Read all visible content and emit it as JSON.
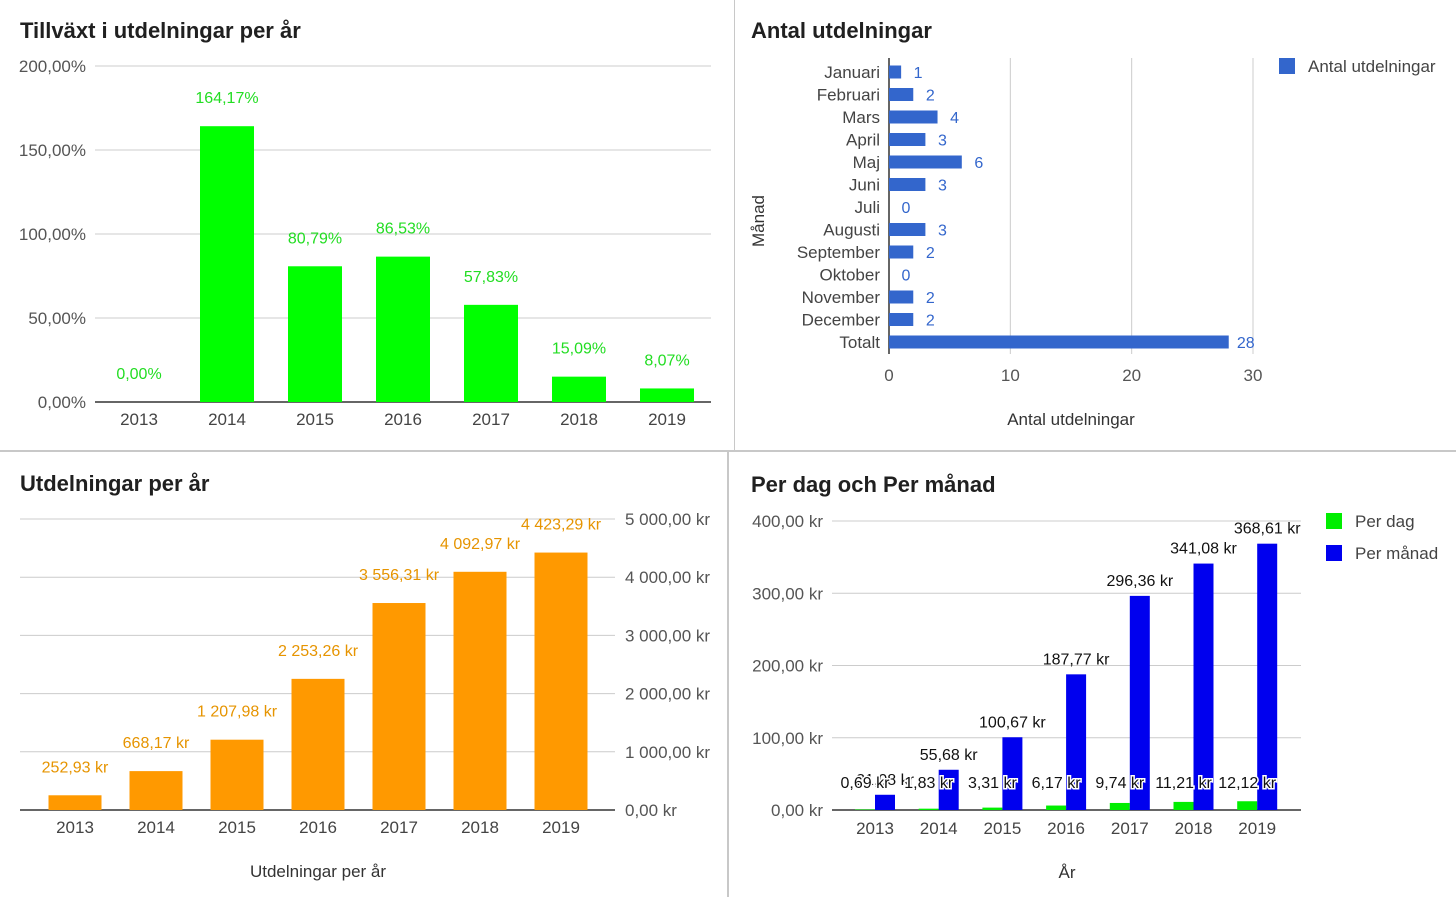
{
  "chart_data": [
    {
      "id": "c1",
      "type": "bar",
      "title": "Tillväxt i utdelningar per år",
      "categories": [
        "2013",
        "2014",
        "2015",
        "2016",
        "2017",
        "2018",
        "2019"
      ],
      "values": [
        0,
        164.17,
        80.79,
        86.53,
        57.83,
        15.09,
        8.07
      ],
      "data_labels": [
        "0,00%",
        "164,17%",
        "80,79%",
        "86,53%",
        "57,83%",
        "15,09%",
        "8,07%"
      ],
      "yticks": [
        "0,00%",
        "50,00%",
        "100,00%",
        "150,00%",
        "200,00%"
      ],
      "ylim": [
        0,
        200
      ],
      "grid": true,
      "color": "#00ff00",
      "label_color": "#22dd22"
    },
    {
      "id": "c2",
      "type": "bar",
      "orientation": "horizontal",
      "title": "Antal utdelningar",
      "categories": [
        "Januari",
        "Februari",
        "Mars",
        "April",
        "Maj",
        "Juni",
        "Juli",
        "Augusti",
        "September",
        "Oktober",
        "November",
        "December",
        "Totalt"
      ],
      "values": [
        1,
        2,
        4,
        3,
        6,
        3,
        0,
        3,
        2,
        0,
        2,
        2,
        28
      ],
      "data_labels": [
        "1",
        "2",
        "4",
        "3",
        "6",
        "3",
        "0",
        "3",
        "2",
        "0",
        "2",
        "2",
        "28"
      ],
      "xticks": [
        "0",
        "10",
        "20",
        "30"
      ],
      "xlim": [
        0,
        30
      ],
      "xlabel": "Antal utdelningar",
      "ylabel": "Månad",
      "legend": [
        "Antal utdelningar"
      ],
      "legend_position": "top-right",
      "grid": true,
      "color": "#3366cc",
      "label_color": "#3366cc"
    },
    {
      "id": "c3",
      "type": "bar",
      "title": "Utdelningar per år",
      "categories": [
        "2013",
        "2014",
        "2015",
        "2016",
        "2017",
        "2018",
        "2019"
      ],
      "values": [
        252.93,
        668.17,
        1207.98,
        2253.26,
        3556.31,
        4092.97,
        4423.29
      ],
      "data_labels": [
        "252,93 kr",
        "668,17 kr",
        "1 207,98 kr",
        "2 253,26 kr",
        "3 556,31 kr",
        "4 092,97 kr",
        "4 423,29 kr"
      ],
      "yticks": [
        "0,00 kr",
        "1 000,00 kr",
        "2 000,00 kr",
        "3 000,00 kr",
        "4 000,00 kr",
        "5 000,00 kr"
      ],
      "ylim": [
        0,
        5000
      ],
      "y_axis_side": "right",
      "xlabel": "Utdelningar per år",
      "grid": true,
      "color": "#ff9900",
      "label_color": "#e69400"
    },
    {
      "id": "c4",
      "type": "bar",
      "title": "Per dag och Per månad",
      "categories": [
        "2013",
        "2014",
        "2015",
        "2016",
        "2017",
        "2018",
        "2019"
      ],
      "series": [
        {
          "name": "Per dag",
          "values": [
            0.69,
            1.83,
            3.31,
            6.17,
            9.74,
            11.21,
            12.12
          ],
          "data_labels": [
            "0,69 kr",
            "1,83 kr",
            "3,31 kr",
            "6,17 kr",
            "9,74 kr",
            "11,21 kr",
            "12,12 kr"
          ],
          "color": "#00ee00"
        },
        {
          "name": "Per månad",
          "values": [
            21.08,
            55.68,
            100.67,
            187.77,
            296.36,
            341.08,
            368.61
          ],
          "data_labels": [
            "21,08 kr",
            "55,68 kr",
            "100,67 kr",
            "187,77 kr",
            "296,36 kr",
            "341,08 kr",
            "368,61 kr"
          ],
          "color": "#0000ee"
        }
      ],
      "yticks": [
        "0,00 kr",
        "100,00 kr",
        "200,00 kr",
        "300,00 kr",
        "400,00 kr"
      ],
      "ylim": [
        0,
        400
      ],
      "xlabel": "År",
      "legend_position": "top-right",
      "grid": true,
      "label_color": "#111111"
    }
  ]
}
